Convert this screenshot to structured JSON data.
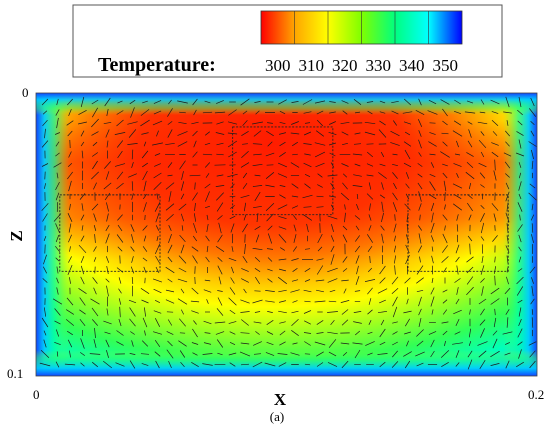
{
  "chart_data": {
    "type": "heatmap",
    "title": "",
    "xlabel": "X",
    "ylabel": "Z",
    "xlim": [
      0,
      0.2
    ],
    "zlim": [
      0,
      0.1
    ],
    "x_tick_labels": [
      "0",
      "0.2"
    ],
    "z_tick_labels": [
      "0",
      "0.1"
    ],
    "z_axis_direction": "down",
    "legend": {
      "placement": "top",
      "label": "Temperature:",
      "ticks": [
        "300",
        "310",
        "320",
        "330",
        "340",
        "350"
      ],
      "tick_values": [
        300,
        310,
        320,
        330,
        340,
        350
      ],
      "colormap": [
        "#ff0000",
        "#ffa500",
        "#ffff00",
        "#7fff00",
        "#00ff7f",
        "#00ffff",
        "#0000ff"
      ]
    },
    "field": "temperature with overlaid velocity vectors; hot (about 300) in the upper middle, colder (about 350) toward the walls",
    "boxes": [
      {
        "name": "left",
        "x": [
          0.0095,
          0.0495
        ],
        "z": [
          0.036,
          0.063
        ]
      },
      {
        "name": "top-center",
        "x": [
          0.0785,
          0.1185
        ],
        "z": [
          0.012,
          0.043
        ]
      },
      {
        "name": "right",
        "x": [
          0.1485,
          0.1885
        ],
        "z": [
          0.036,
          0.063
        ]
      }
    ],
    "caption": "(a)"
  }
}
